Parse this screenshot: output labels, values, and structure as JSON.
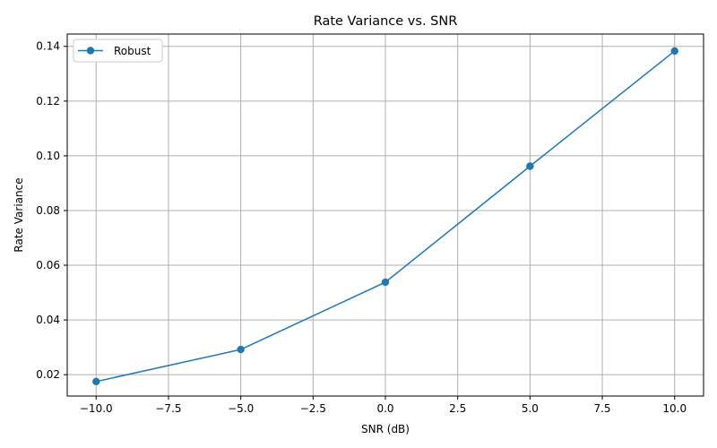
{
  "chart_data": {
    "type": "line",
    "title": "Rate Variance vs. SNR",
    "xlabel": "SNR (dB)",
    "ylabel": "Rate Variance",
    "xlim": [
      -11.0,
      11.0
    ],
    "ylim": [
      0.0122,
      0.1445
    ],
    "xticks": [
      -10.0,
      -7.5,
      -5.0,
      -2.5,
      0.0,
      2.5,
      5.0,
      7.5,
      10.0
    ],
    "xtick_labels": [
      "−10.0",
      "−7.5",
      "−5.0",
      "−2.5",
      "0.0",
      "2.5",
      "5.0",
      "7.5",
      "10.0"
    ],
    "yticks": [
      0.02,
      0.04,
      0.06,
      0.08,
      0.1,
      0.12,
      0.14
    ],
    "ytick_labels": [
      "0.02",
      "0.04",
      "0.06",
      "0.08",
      "0.10",
      "0.12",
      "0.14"
    ],
    "grid": true,
    "legend_position": "top-left",
    "series": [
      {
        "name": "Robust",
        "color": "#1f77b4",
        "marker": "circle",
        "x": [
          -10,
          -5,
          0,
          5,
          10
        ],
        "y": [
          0.0175,
          0.0292,
          0.0538,
          0.0962,
          0.1383
        ]
      }
    ]
  }
}
